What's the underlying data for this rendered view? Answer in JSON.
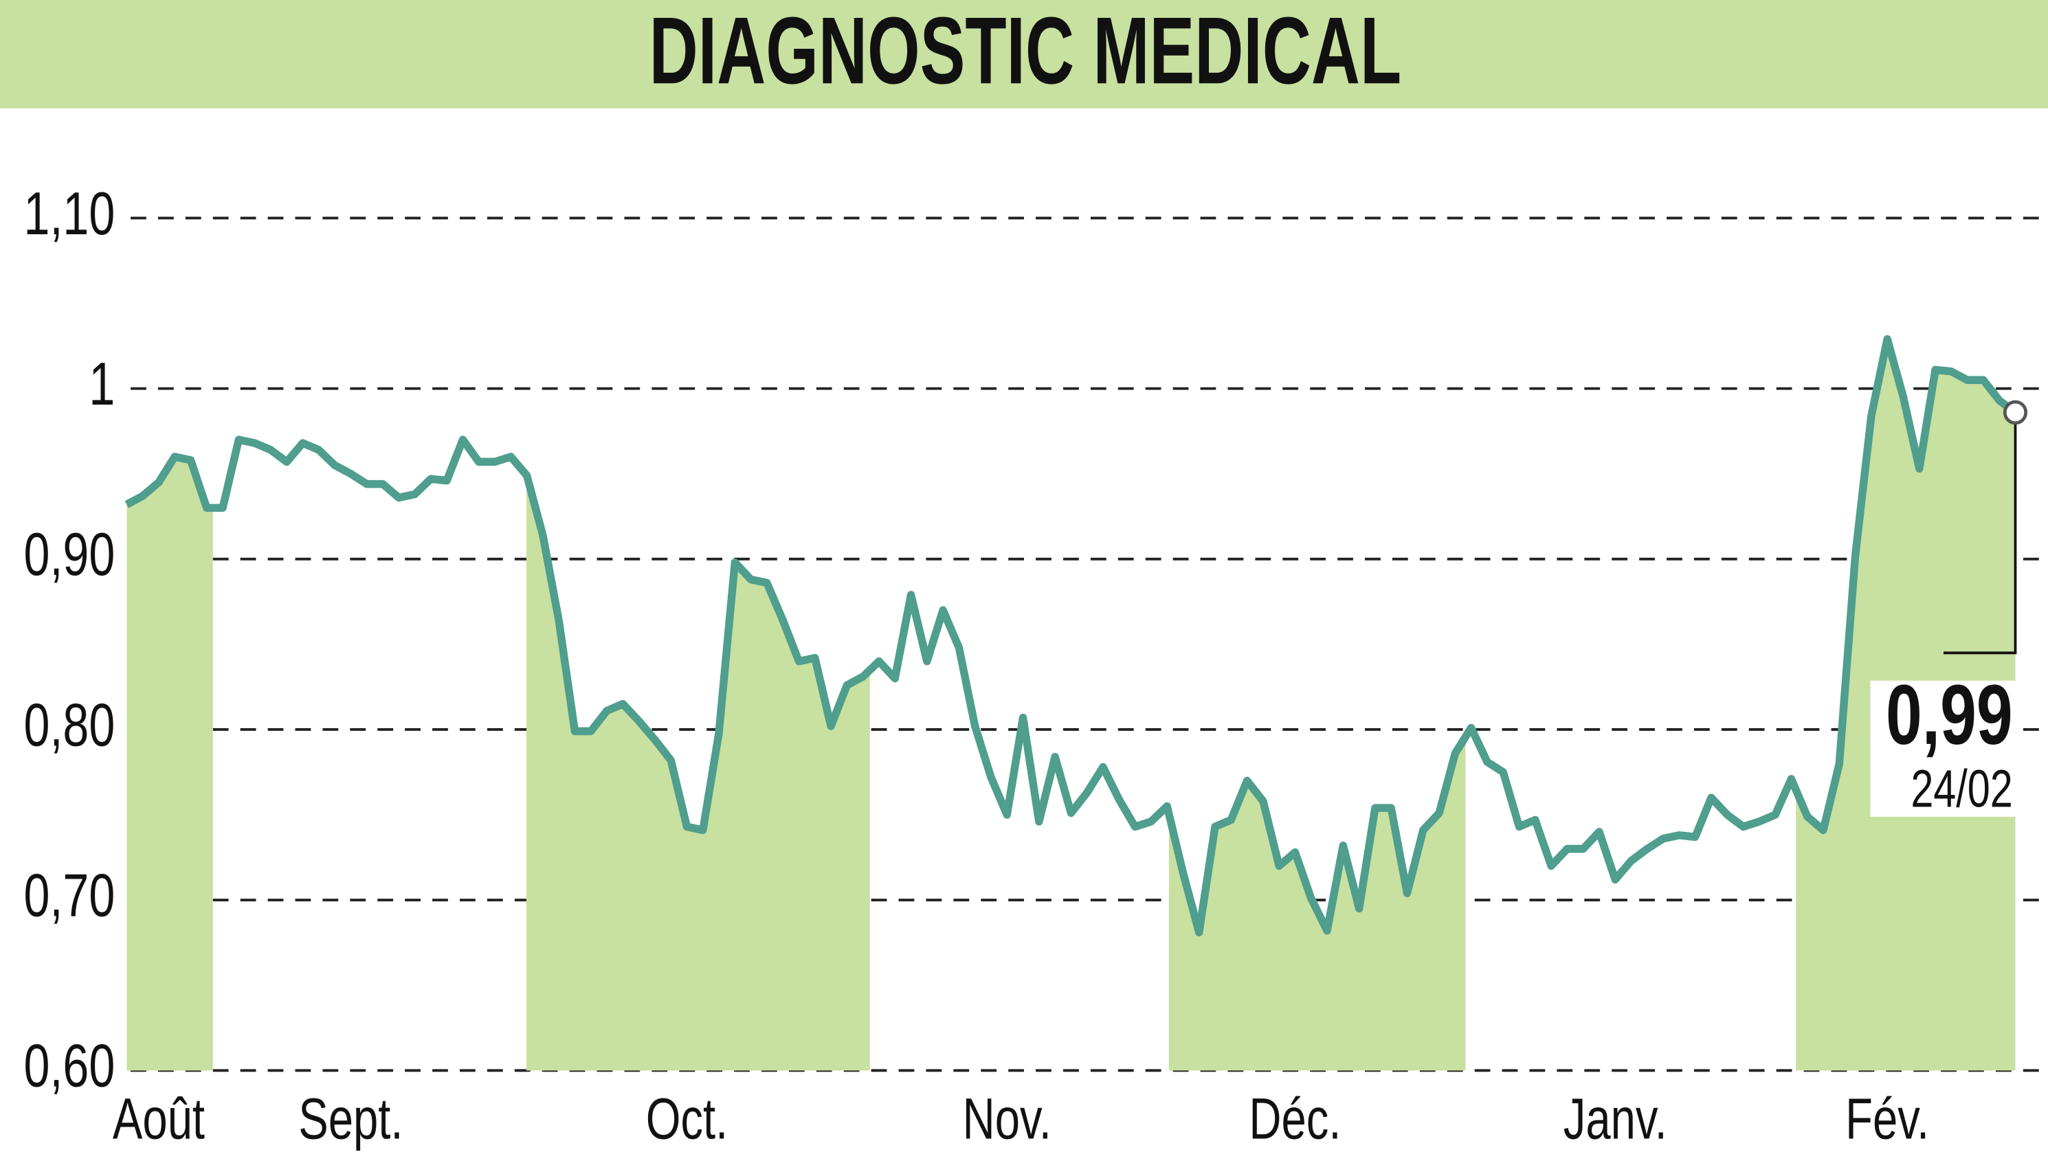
{
  "chart_data": {
    "type": "line",
    "title": "DIAGNOSTIC MEDICAL",
    "series": [
      {
        "name": "DIAGNOSTIC MEDICAL",
        "color": "#4f9e8e",
        "values": [
          0.932,
          0.937,
          0.945,
          0.96,
          0.958,
          0.93,
          0.93,
          0.97,
          0.968,
          0.964,
          0.957,
          0.968,
          0.964,
          0.955,
          0.95,
          0.944,
          0.944,
          0.936,
          0.938,
          0.947,
          0.946,
          0.97,
          0.957,
          0.957,
          0.96,
          0.949,
          0.914,
          0.864,
          0.799,
          0.799,
          0.811,
          0.815,
          0.805,
          0.794,
          0.782,
          0.743,
          0.741,
          0.798,
          0.898,
          0.888,
          0.886,
          0.864,
          0.84,
          0.842,
          0.802,
          0.826,
          0.831,
          0.84,
          0.83,
          0.879,
          0.84,
          0.87,
          0.848,
          0.802,
          0.772,
          0.75,
          0.807,
          0.746,
          0.784,
          0.751,
          0.763,
          0.778,
          0.759,
          0.743,
          0.746,
          0.755,
          0.716,
          0.681,
          0.743,
          0.747,
          0.77,
          0.758,
          0.72,
          0.728,
          0.701,
          0.682,
          0.732,
          0.695,
          0.754,
          0.754,
          0.704,
          0.741,
          0.751,
          0.786,
          0.801,
          0.781,
          0.775,
          0.743,
          0.747,
          0.72,
          0.73,
          0.73,
          0.74,
          0.712,
          0.723,
          0.73,
          0.736,
          0.738,
          0.737,
          0.76,
          0.75,
          0.743,
          0.746,
          0.75,
          0.771,
          0.749,
          0.741,
          0.78,
          0.902,
          0.984,
          1.029,
          0.995,
          0.953,
          1.011,
          1.01,
          1.005,
          1.005,
          0.993,
          0.986
        ]
      }
    ],
    "fill_color": "#c8e0a0",
    "xticks": [
      {
        "value": 2,
        "label": "Août"
      },
      {
        "value": 14,
        "label": "Sept."
      },
      {
        "value": 35,
        "label": "Oct."
      },
      {
        "value": 55,
        "label": "Nov."
      },
      {
        "value": 73,
        "label": "Déc."
      },
      {
        "value": 93,
        "label": "Janv."
      },
      {
        "value": 110,
        "label": "Fév."
      }
    ],
    "ylim": [
      0.6,
      1.1
    ],
    "yticks": [
      {
        "value": 0.6,
        "label": "0,60"
      },
      {
        "value": 0.7,
        "label": "0,70"
      },
      {
        "value": 0.8,
        "label": "0,80"
      },
      {
        "value": 0.9,
        "label": "0,90"
      },
      1,
      {
        "value": 1.1,
        "label": "1,10"
      }
    ],
    "grid": true,
    "last_label": "0,99",
    "last_date": "24/02"
  }
}
